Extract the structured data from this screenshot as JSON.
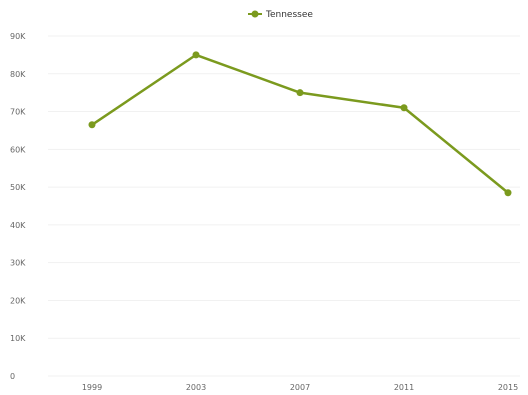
{
  "chart_data": {
    "type": "line",
    "title": "",
    "xlabel": "",
    "ylabel": "",
    "x": [
      "1999",
      "2003",
      "2007",
      "2011",
      "2015"
    ],
    "y_ticks": [
      "0",
      "10K",
      "20K",
      "30K",
      "40K",
      "50K",
      "60K",
      "70K",
      "80K",
      "90K"
    ],
    "ylim": [
      0,
      90000
    ],
    "grid": true,
    "legend": {
      "placement": "top-center"
    },
    "series": [
      {
        "name": "Tennessee",
        "color": "#7b9a1e",
        "values": [
          66500,
          85000,
          75000,
          71000,
          48500
        ]
      }
    ]
  }
}
